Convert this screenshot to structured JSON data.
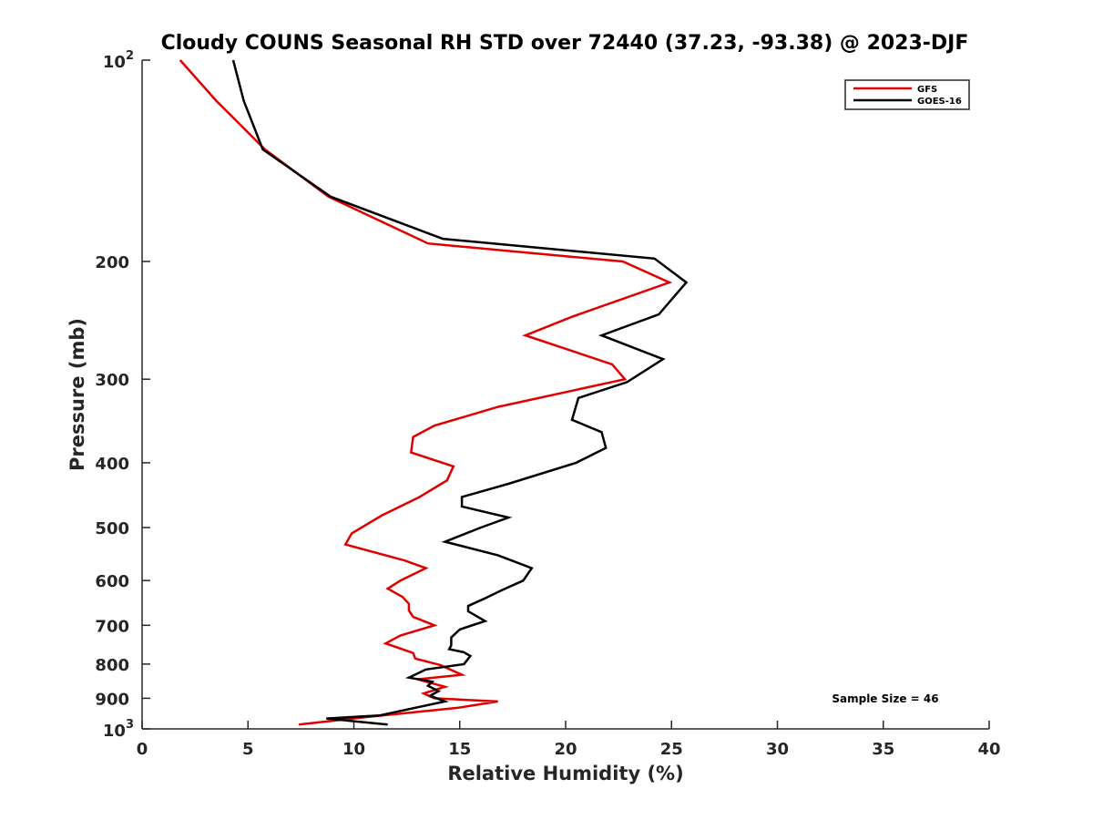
{
  "chart_data": {
    "type": "line",
    "title": "Cloudy COUNS Seasonal RH STD over 72440 (37.23, -93.38) @ 2023-DJF",
    "xlabel": "Relative Humidity (%)",
    "ylabel": "Pressure (mb)",
    "xlim": [
      0,
      40
    ],
    "ylim": [
      100,
      1000
    ],
    "yscale": "log",
    "yreversed": true,
    "xticks": [
      0,
      5,
      10,
      15,
      20,
      25,
      30,
      35,
      40
    ],
    "xtick_labels": [
      "0",
      "5",
      "10",
      "15",
      "20",
      "25",
      "30",
      "35",
      "40"
    ],
    "yticks": [
      {
        "value": 100,
        "label": "10",
        "sup": "2"
      },
      {
        "value": 200,
        "label": "200",
        "sup": ""
      },
      {
        "value": 300,
        "label": "300",
        "sup": ""
      },
      {
        "value": 400,
        "label": "400",
        "sup": ""
      },
      {
        "value": 500,
        "label": "500",
        "sup": ""
      },
      {
        "value": 600,
        "label": "600",
        "sup": ""
      },
      {
        "value": 700,
        "label": "700",
        "sup": ""
      },
      {
        "value": 800,
        "label": "800",
        "sup": ""
      },
      {
        "value": 900,
        "label": "900",
        "sup": ""
      },
      {
        "value": 1000,
        "label": "10",
        "sup": "3"
      }
    ],
    "legend_position": "top-right",
    "series": [
      {
        "name": "GFS",
        "color": "#e00000",
        "points": [
          [
            1.8,
            100
          ],
          [
            3.5,
            115
          ],
          [
            5.8,
            136
          ],
          [
            8.8,
            160
          ],
          [
            13.5,
            188
          ],
          [
            22.7,
            200
          ],
          [
            24.9,
            215
          ],
          [
            20.3,
            242
          ],
          [
            18.1,
            258
          ],
          [
            22.2,
            285
          ],
          [
            22.8,
            300
          ],
          [
            16.8,
            330
          ],
          [
            13.8,
            352
          ],
          [
            12.8,
            366
          ],
          [
            12.7,
            386
          ],
          [
            14.7,
            405
          ],
          [
            14.4,
            425
          ],
          [
            13.1,
            450
          ],
          [
            11.3,
            480
          ],
          [
            9.9,
            510
          ],
          [
            9.6,
            530
          ],
          [
            12.4,
            560
          ],
          [
            13.4,
            575
          ],
          [
            12.2,
            600
          ],
          [
            11.6,
            617
          ],
          [
            12.3,
            635
          ],
          [
            12.6,
            650
          ],
          [
            12.6,
            665
          ],
          [
            12.8,
            680
          ],
          [
            13.8,
            700
          ],
          [
            12.2,
            725
          ],
          [
            11.5,
            745
          ],
          [
            12.8,
            770
          ],
          [
            12.9,
            785
          ],
          [
            14.1,
            803
          ],
          [
            15.1,
            830
          ],
          [
            13.0,
            843
          ],
          [
            14.3,
            865
          ],
          [
            13.3,
            885
          ],
          [
            13.8,
            900
          ],
          [
            16.8,
            910
          ],
          [
            14.9,
            930
          ],
          [
            10.6,
            960
          ],
          [
            7.4,
            985
          ]
        ]
      },
      {
        "name": "GOES-16",
        "color": "#000000",
        "points": [
          [
            4.3,
            100
          ],
          [
            4.8,
            115
          ],
          [
            5.7,
            136
          ],
          [
            8.9,
            160
          ],
          [
            14.2,
            185
          ],
          [
            24.2,
            198
          ],
          [
            25.7,
            215
          ],
          [
            24.4,
            240
          ],
          [
            21.7,
            258
          ],
          [
            24.6,
            280
          ],
          [
            22.9,
            303
          ],
          [
            20.6,
            320
          ],
          [
            20.3,
            345
          ],
          [
            21.7,
            360
          ],
          [
            21.9,
            380
          ],
          [
            20.5,
            400
          ],
          [
            17.3,
            430
          ],
          [
            15.1,
            450
          ],
          [
            15.1,
            465
          ],
          [
            17.3,
            483
          ],
          [
            16.0,
            500
          ],
          [
            14.3,
            525
          ],
          [
            16.8,
            550
          ],
          [
            18.4,
            575
          ],
          [
            18.0,
            600
          ],
          [
            17.0,
            620
          ],
          [
            16.1,
            640
          ],
          [
            15.4,
            655
          ],
          [
            15.4,
            667
          ],
          [
            16.2,
            690
          ],
          [
            15.0,
            710
          ],
          [
            14.6,
            730
          ],
          [
            14.6,
            750
          ],
          [
            14.5,
            760
          ],
          [
            15.2,
            768
          ],
          [
            15.5,
            778
          ],
          [
            15.2,
            800
          ],
          [
            13.4,
            815
          ],
          [
            12.6,
            838
          ],
          [
            13.7,
            850
          ],
          [
            13.5,
            862
          ],
          [
            14.0,
            878
          ],
          [
            13.6,
            892
          ],
          [
            14.3,
            910
          ],
          [
            11.2,
            955
          ],
          [
            8.7,
            965
          ],
          [
            11.6,
            985
          ]
        ]
      }
    ],
    "annotation": "Sample Size = 46"
  }
}
